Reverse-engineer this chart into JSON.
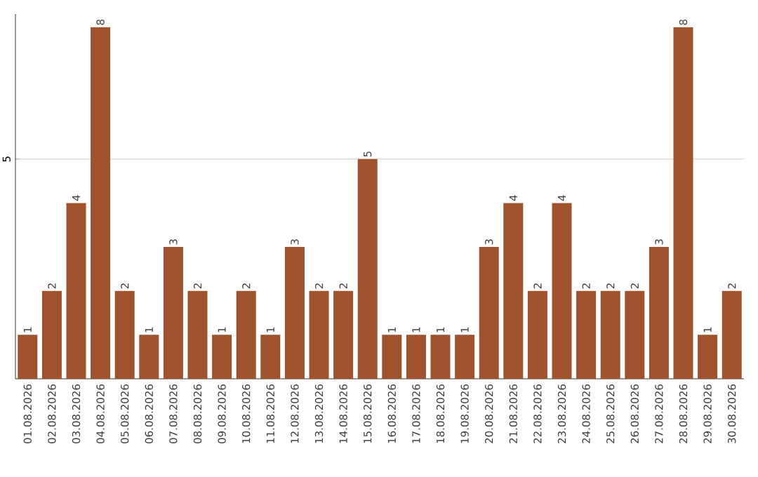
{
  "chart_data": {
    "type": "bar",
    "categories": [
      "01.08.2026",
      "02.08.2026",
      "03.08.2026",
      "04.08.2026",
      "05.08.2026",
      "06.08.2026",
      "07.08.2026",
      "08.08.2026",
      "09.08.2026",
      "10.08.2026",
      "11.08.2026",
      "12.08.2026",
      "13.08.2026",
      "14.08.2026",
      "15.08.2026",
      "16.08.2026",
      "17.08.2026",
      "18.08.2026",
      "19.08.2026",
      "20.08.2026",
      "21.08.2026",
      "22.08.2026",
      "23.08.2026",
      "24.08.2026",
      "25.08.2026",
      "26.08.2026",
      "27.08.2026",
      "28.08.2026",
      "29.08.2026",
      "30.08.2026"
    ],
    "values": [
      1,
      2,
      4,
      8,
      2,
      1,
      3,
      2,
      1,
      2,
      1,
      3,
      2,
      2,
      5,
      1,
      1,
      1,
      1,
      3,
      4,
      2,
      4,
      2,
      2,
      2,
      3,
      8,
      1,
      2
    ],
    "color": "#a0522d",
    "ylim": [
      0,
      8.3
    ],
    "yticks": [
      5
    ],
    "grid": "y",
    "data_labels": true
  }
}
